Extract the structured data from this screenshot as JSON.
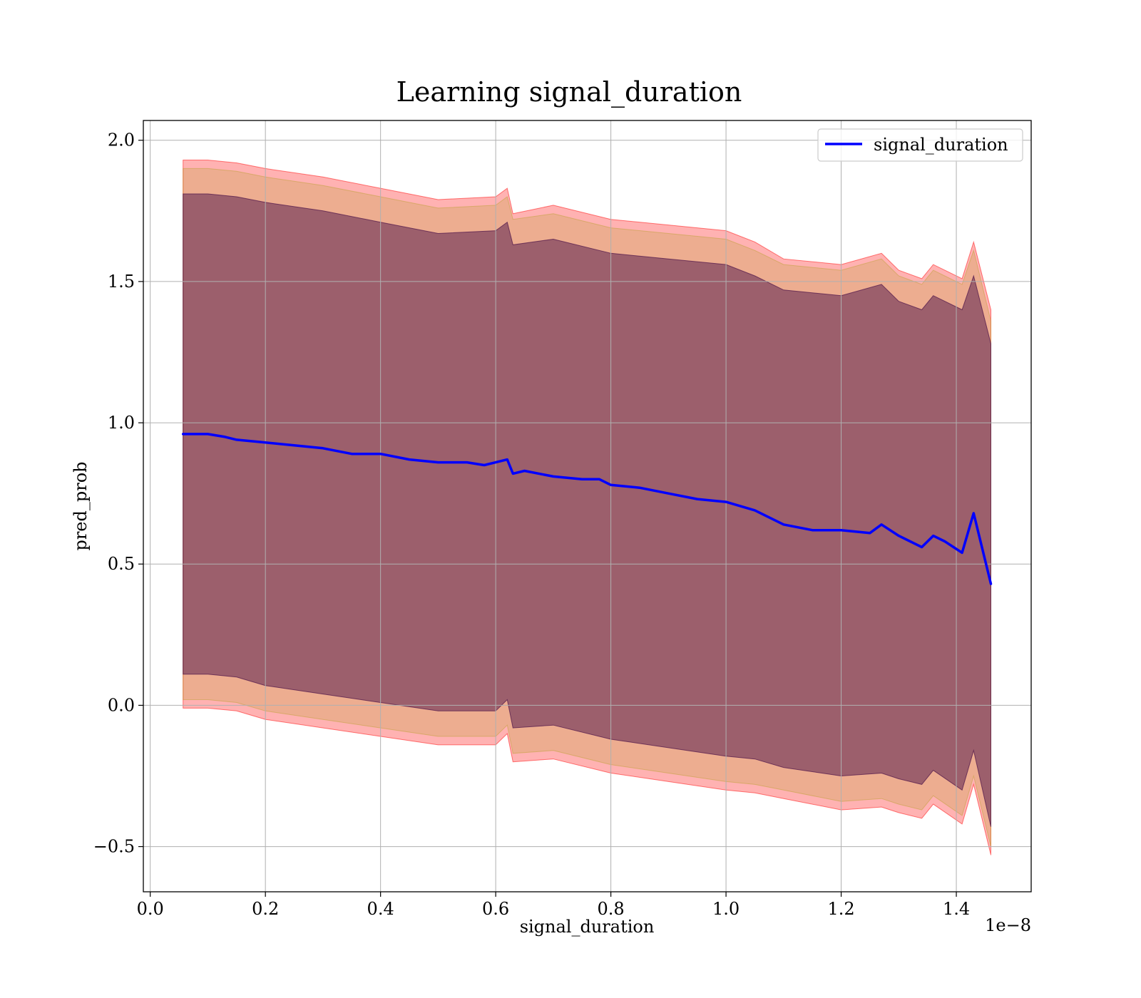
{
  "chart_data": {
    "type": "line",
    "title": "Learning signal_duration",
    "xlabel": "signal_duration",
    "ylabel": "pred_prob",
    "x_offset_label": "1e−8",
    "xlim": [
      -0.012,
      1.53
    ],
    "ylim": [
      -0.66,
      2.07
    ],
    "x_ticks": [
      0.0,
      0.2,
      0.4,
      0.6,
      0.8,
      1.0,
      1.2,
      1.4
    ],
    "x_tick_labels": [
      "0.0",
      "0.2",
      "0.4",
      "0.6",
      "0.8",
      "1.0",
      "1.2",
      "1.4"
    ],
    "y_ticks": [
      -0.5,
      0.0,
      0.5,
      1.0,
      1.5,
      2.0
    ],
    "y_tick_labels": [
      "−0.5",
      "0.0",
      "0.5",
      "1.0",
      "1.5",
      "2.0"
    ],
    "grid": true,
    "legend_position": "upper right",
    "series": [
      {
        "name": "signal_duration",
        "color": "#0000ff",
        "x": [
          0.057,
          0.08,
          0.1,
          0.13,
          0.15,
          0.2,
          0.25,
          0.3,
          0.35,
          0.4,
          0.45,
          0.5,
          0.55,
          0.58,
          0.6,
          0.62,
          0.63,
          0.65,
          0.7,
          0.75,
          0.78,
          0.8,
          0.85,
          0.9,
          0.95,
          1.0,
          1.05,
          1.1,
          1.15,
          1.2,
          1.25,
          1.27,
          1.3,
          1.34,
          1.36,
          1.38,
          1.41,
          1.43,
          1.46
        ],
        "y": [
          0.96,
          0.96,
          0.96,
          0.95,
          0.94,
          0.93,
          0.92,
          0.91,
          0.89,
          0.89,
          0.87,
          0.86,
          0.86,
          0.85,
          0.86,
          0.87,
          0.82,
          0.83,
          0.81,
          0.8,
          0.8,
          0.78,
          0.77,
          0.75,
          0.73,
          0.72,
          0.69,
          0.64,
          0.62,
          0.62,
          0.61,
          0.64,
          0.6,
          0.56,
          0.6,
          0.58,
          0.54,
          0.68,
          0.43
        ]
      }
    ],
    "bands": [
      {
        "role": "outer",
        "color": "#ff0000",
        "opacity": 0.3,
        "x": [
          0.057,
          0.1,
          0.15,
          0.2,
          0.3,
          0.4,
          0.5,
          0.6,
          0.62,
          0.63,
          0.7,
          0.8,
          0.9,
          1.0,
          1.05,
          1.1,
          1.2,
          1.27,
          1.3,
          1.34,
          1.36,
          1.41,
          1.43,
          1.46
        ],
        "upper": [
          1.93,
          1.93,
          1.92,
          1.9,
          1.87,
          1.83,
          1.79,
          1.8,
          1.83,
          1.74,
          1.77,
          1.72,
          1.7,
          1.68,
          1.64,
          1.58,
          1.56,
          1.6,
          1.54,
          1.51,
          1.56,
          1.51,
          1.64,
          1.4
        ],
        "lower": [
          -0.01,
          -0.01,
          -0.02,
          -0.05,
          -0.08,
          -0.11,
          -0.14,
          -0.14,
          -0.1,
          -0.2,
          -0.19,
          -0.24,
          -0.27,
          -0.3,
          -0.31,
          -0.33,
          -0.37,
          -0.36,
          -0.38,
          -0.4,
          -0.35,
          -0.42,
          -0.28,
          -0.53
        ]
      },
      {
        "role": "middle",
        "color": "#b8a02a",
        "opacity": 0.25,
        "x": [
          0.057,
          0.1,
          0.15,
          0.2,
          0.3,
          0.4,
          0.5,
          0.6,
          0.62,
          0.63,
          0.7,
          0.8,
          0.9,
          1.0,
          1.05,
          1.1,
          1.2,
          1.27,
          1.3,
          1.34,
          1.36,
          1.41,
          1.43,
          1.46
        ],
        "upper": [
          1.9,
          1.9,
          1.89,
          1.87,
          1.84,
          1.8,
          1.76,
          1.77,
          1.8,
          1.72,
          1.74,
          1.69,
          1.67,
          1.65,
          1.61,
          1.56,
          1.54,
          1.58,
          1.52,
          1.49,
          1.54,
          1.49,
          1.61,
          1.36
        ],
        "lower": [
          0.02,
          0.02,
          0.01,
          -0.02,
          -0.05,
          -0.08,
          -0.11,
          -0.11,
          -0.07,
          -0.17,
          -0.16,
          -0.21,
          -0.24,
          -0.27,
          -0.28,
          -0.3,
          -0.34,
          -0.33,
          -0.35,
          -0.37,
          -0.32,
          -0.39,
          -0.25,
          -0.5
        ]
      },
      {
        "role": "inner",
        "color": "#4b1248",
        "opacity": 0.5,
        "x": [
          0.057,
          0.1,
          0.15,
          0.2,
          0.3,
          0.4,
          0.5,
          0.6,
          0.62,
          0.63,
          0.7,
          0.8,
          0.9,
          1.0,
          1.05,
          1.1,
          1.2,
          1.27,
          1.3,
          1.34,
          1.36,
          1.41,
          1.43,
          1.46
        ],
        "upper": [
          1.81,
          1.81,
          1.8,
          1.78,
          1.75,
          1.71,
          1.67,
          1.68,
          1.71,
          1.63,
          1.65,
          1.6,
          1.58,
          1.56,
          1.52,
          1.47,
          1.45,
          1.49,
          1.43,
          1.4,
          1.45,
          1.4,
          1.52,
          1.28
        ],
        "lower": [
          0.11,
          0.11,
          0.1,
          0.07,
          0.04,
          0.01,
          -0.02,
          -0.02,
          0.02,
          -0.08,
          -0.07,
          -0.12,
          -0.15,
          -0.18,
          -0.19,
          -0.22,
          -0.25,
          -0.24,
          -0.26,
          -0.28,
          -0.23,
          -0.3,
          -0.16,
          -0.43
        ]
      }
    ]
  }
}
